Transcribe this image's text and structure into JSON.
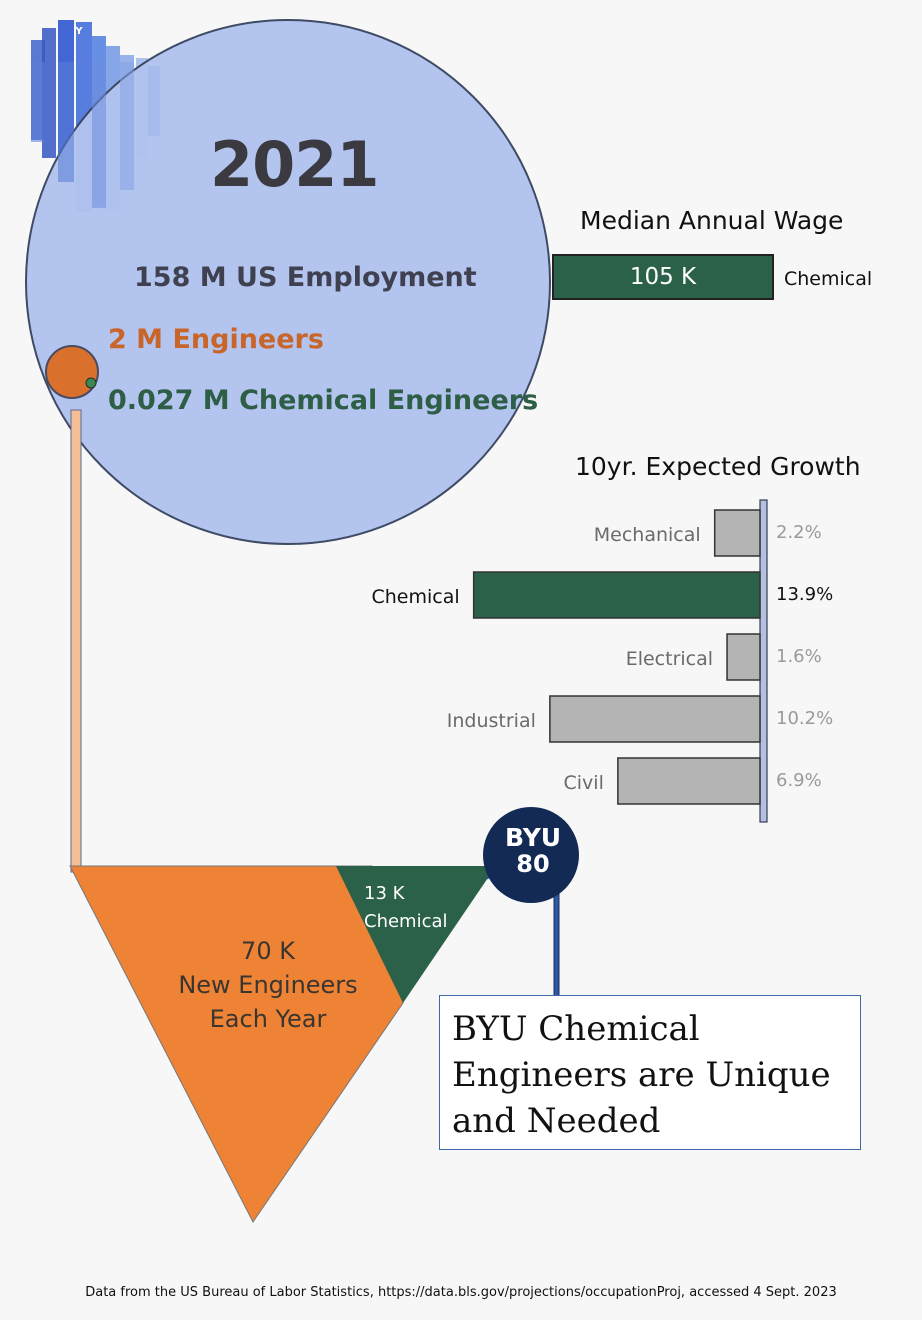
{
  "header": {
    "year": "2021"
  },
  "employment": {
    "us_total": "158 M US Employment",
    "engineers": "2 M Engineers",
    "chemical_engineers": "0.027 M Chemical Engineers"
  },
  "colors": {
    "us_circle": "#b1c3ef",
    "engineers": "#d9712d",
    "chemical": "#2b6148",
    "other_bars": "#b4b4b4",
    "byu_navy": "#132a55",
    "funnel": "#ee8336"
  },
  "wage": {
    "title": "Median Annual Wage",
    "bar_text": "105 K",
    "category": "Chemical"
  },
  "chart_data": {
    "type": "bar",
    "title": "10yr. Expected Growth",
    "orientation": "horizontal",
    "categories": [
      "Mechanical",
      "Chemical",
      "Electrical",
      "Industrial",
      "Civil"
    ],
    "values": [
      2.2,
      13.9,
      1.6,
      10.2,
      6.9
    ],
    "value_labels": [
      "2.2%",
      "13.9%",
      "1.6%",
      "10.2%",
      "6.9%"
    ],
    "highlight": "Chemical"
  },
  "pipeline": {
    "new_engineers": [
      "70 K",
      "New Engineers",
      "Each Year"
    ],
    "chemical_share": [
      "13 K",
      "Chemical"
    ]
  },
  "byu": {
    "name": "BYU",
    "count": "80",
    "logo_letter": "Y",
    "callout": "BYU Chemical Engineers are Unique and Needed"
  },
  "footer": {
    "source": "Data from the US Bureau of Labor Statistics, https://data.bls.gov/projections/occupationProj, accessed 4 Sept. 2023"
  }
}
